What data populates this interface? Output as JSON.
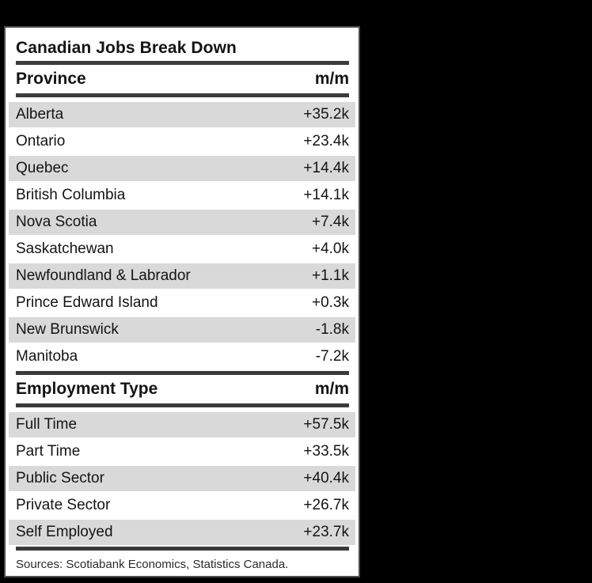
{
  "table": {
    "title": "Canadian Jobs Break Down",
    "source": "Sources: Scotiabank Economics, Statistics Canada.",
    "sections": [
      {
        "header": {
          "label": "Province",
          "value_label": "m/m"
        },
        "rows": [
          {
            "label": "Alberta",
            "value": "+35.2k"
          },
          {
            "label": "Ontario",
            "value": "+23.4k"
          },
          {
            "label": "Quebec",
            "value": "+14.4k"
          },
          {
            "label": "British Columbia",
            "value": "+14.1k"
          },
          {
            "label": "Nova Scotia",
            "value": "+7.4k"
          },
          {
            "label": "Saskatchewan",
            "value": "+4.0k"
          },
          {
            "label": "Newfoundland & Labrador",
            "value": "+1.1k"
          },
          {
            "label": "Prince Edward Island",
            "value": "+0.3k"
          },
          {
            "label": "New Brunswick",
            "value": "-1.8k"
          },
          {
            "label": "Manitoba",
            "value": "-7.2k"
          }
        ]
      },
      {
        "header": {
          "label": "Employment Type",
          "value_label": "m/m"
        },
        "rows": [
          {
            "label": "Full Time",
            "value": "+57.5k"
          },
          {
            "label": "Part Time",
            "value": "+33.5k"
          },
          {
            "label": "Public Sector",
            "value": "+40.4k"
          },
          {
            "label": "Private Sector",
            "value": "+26.7k"
          },
          {
            "label": "Self Employed",
            "value": "+23.7k"
          }
        ]
      }
    ]
  },
  "colors": {
    "page_background": "#000000",
    "card_background": "#ffffff",
    "card_border": "#4d4d4d",
    "rule": "#3b3b3b",
    "row_shading": "#d9d9d9",
    "text": "#141414"
  },
  "chart_data": {
    "type": "table",
    "title": "Canadian Jobs Break Down",
    "value_unit": "k",
    "sections": [
      {
        "columns": [
          "Province",
          "m/m"
        ],
        "rows": [
          [
            "Alberta",
            35.2
          ],
          [
            "Ontario",
            23.4
          ],
          [
            "Quebec",
            14.4
          ],
          [
            "British Columbia",
            14.1
          ],
          [
            "Nova Scotia",
            7.4
          ],
          [
            "Saskatchewan",
            4.0
          ],
          [
            "Newfoundland & Labrador",
            1.1
          ],
          [
            "Prince Edward Island",
            0.3
          ],
          [
            "New Brunswick",
            -1.8
          ],
          [
            "Manitoba",
            -7.2
          ]
        ]
      },
      {
        "columns": [
          "Employment Type",
          "m/m"
        ],
        "rows": [
          [
            "Full Time",
            57.5
          ],
          [
            "Part Time",
            33.5
          ],
          [
            "Public Sector",
            40.4
          ],
          [
            "Private Sector",
            26.7
          ],
          [
            "Self Employed",
            23.7
          ]
        ]
      }
    ],
    "source": "Sources: Scotiabank Economics, Statistics Canada."
  }
}
